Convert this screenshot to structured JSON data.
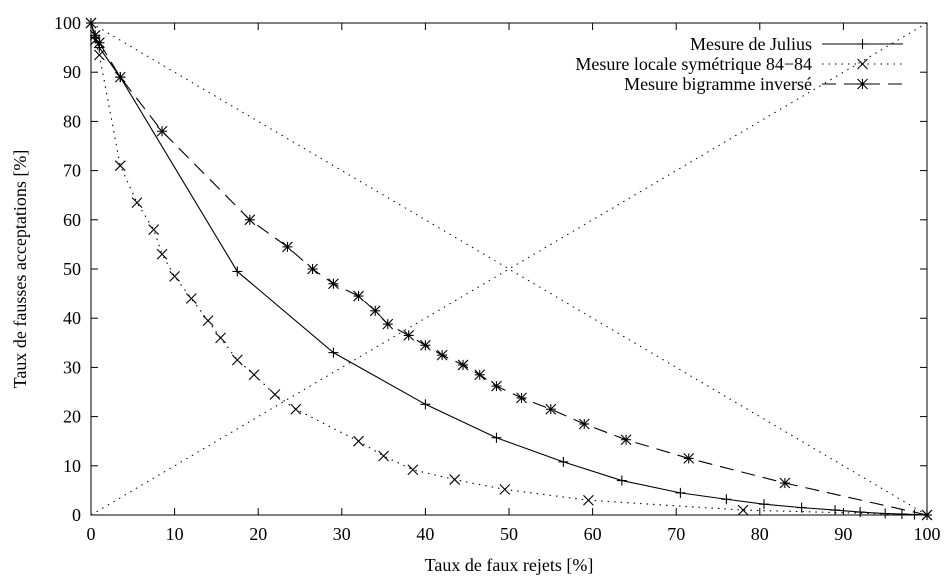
{
  "chart_data": {
    "type": "line",
    "title": "",
    "xlabel": "Taux de faux rejets [%]",
    "ylabel": "Taux de fausses acceptations [%]",
    "xlim": [
      0,
      100
    ],
    "ylim": [
      0,
      100
    ],
    "xticks": [
      "0",
      "10",
      "20",
      "30",
      "40",
      "50",
      "60",
      "70",
      "80",
      "90",
      "100"
    ],
    "yticks": [
      "0",
      "10",
      "20",
      "30",
      "40",
      "50",
      "60",
      "70",
      "80",
      "90",
      "100"
    ],
    "grid": false,
    "legend_position": "top-right",
    "series": [
      {
        "name": "Mesure de Julius",
        "line": "solid",
        "marker": "plus",
        "x": [
          0,
          0.5,
          1,
          3.5,
          17.5,
          29,
          40,
          48.5,
          56.5,
          63.5,
          70.5,
          76,
          80.5,
          85,
          89,
          92,
          95,
          97,
          98.5,
          100
        ],
        "y": [
          100,
          97,
          95,
          89,
          49.5,
          33,
          22.5,
          15.7,
          10.8,
          7,
          4.5,
          3.2,
          2.2,
          1.5,
          1,
          0.6,
          0.3,
          0.2,
          0.1,
          0
        ]
      },
      {
        "name": "Mesure locale symétrique 84−84",
        "line": "dotted",
        "marker": "cross",
        "x": [
          0,
          0.5,
          1,
          3.5,
          5.5,
          7.5,
          8.5,
          10,
          12,
          14,
          15.5,
          17.5,
          19.5,
          22,
          24.5,
          32,
          35,
          38.5,
          43.5,
          49.5,
          59.5,
          78,
          100
        ],
        "y": [
          100,
          96.5,
          93.5,
          71,
          63.5,
          58,
          53,
          48.5,
          44,
          39.5,
          36,
          31.5,
          28.5,
          24.5,
          21.5,
          15,
          12,
          9.2,
          7.2,
          5.2,
          3,
          1,
          0
        ]
      },
      {
        "name": "Mesure bigramme inversé",
        "line": "dashed",
        "marker": "star",
        "x": [
          0,
          0.5,
          1,
          3.5,
          8.5,
          19,
          23.5,
          26.5,
          29,
          32,
          34,
          35.5,
          38,
          40,
          42,
          44.5,
          46.5,
          48.5,
          51.5,
          55,
          59,
          64,
          71.5,
          83,
          100
        ],
        "y": [
          100,
          97.5,
          96,
          89,
          78,
          60,
          54.5,
          50,
          47,
          44.5,
          41.5,
          38.8,
          36.5,
          34.5,
          32.5,
          30.5,
          28.5,
          26.2,
          23.8,
          21.5,
          18.5,
          15.3,
          11.5,
          6.5,
          0
        ]
      }
    ],
    "reference_lines": [
      {
        "style": "dotted",
        "x": [
          0,
          100
        ],
        "y": [
          0,
          100
        ]
      },
      {
        "style": "dotted",
        "x": [
          0,
          100
        ],
        "y": [
          100,
          0
        ]
      }
    ]
  }
}
